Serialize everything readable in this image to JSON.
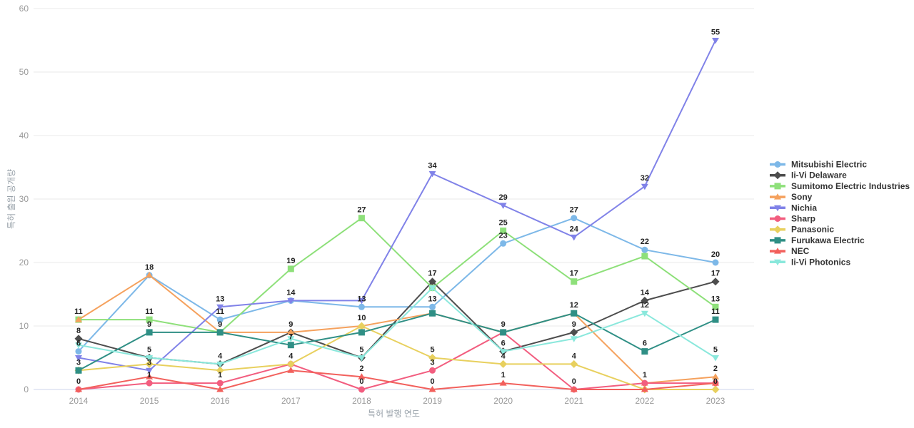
{
  "chart_data": {
    "type": "line",
    "title": "",
    "xlabel": "특허 발행 연도",
    "ylabel": "특허 출원 공개량",
    "categories": [
      "2014",
      "2015",
      "2016",
      "2017",
      "2018",
      "2019",
      "2020",
      "2021",
      "2022",
      "2023"
    ],
    "y_ticks": [
      0,
      10,
      20,
      30,
      40,
      50,
      60
    ],
    "ylim": [
      0,
      60
    ],
    "grid": true,
    "legend_position": "right",
    "series": [
      {
        "name": "Mitsubishi Electric",
        "color": "#7db8e8",
        "symbol": "circle",
        "values": [
          6,
          18,
          11,
          14,
          13,
          13,
          23,
          27,
          22,
          20
        ]
      },
      {
        "name": "Ii-Vi Delaware",
        "color": "#4d4d4d",
        "symbol": "diamond",
        "values": [
          8,
          5,
          4,
          9,
          5,
          17,
          6,
          9,
          14,
          17
        ]
      },
      {
        "name": "Sumitomo Electric Industries",
        "color": "#8ee07a",
        "symbol": "square",
        "values": [
          11,
          11,
          9,
          19,
          27,
          16,
          25,
          17,
          21,
          13
        ]
      },
      {
        "name": "Sony",
        "color": "#f5a15d",
        "symbol": "triangle-up",
        "values": [
          11,
          18,
          9,
          9,
          10,
          12,
          9,
          12,
          1,
          2
        ]
      },
      {
        "name": "Nichia",
        "color": "#8082e8",
        "symbol": "triangle-down",
        "values": [
          5,
          3,
          13,
          14,
          14,
          34,
          29,
          24,
          32,
          55
        ]
      },
      {
        "name": "Sharp",
        "color": "#f25d7f",
        "symbol": "circle",
        "values": [
          0,
          1,
          1,
          4,
          0,
          3,
          9,
          0,
          1,
          1
        ]
      },
      {
        "name": "Panasonic",
        "color": "#e8d05e",
        "symbol": "diamond",
        "values": [
          3,
          4,
          3,
          4,
          10,
          5,
          4,
          4,
          0,
          0
        ]
      },
      {
        "name": "Furukawa Electric",
        "color": "#2f8f85",
        "symbol": "square",
        "values": [
          3,
          9,
          9,
          7,
          9,
          12,
          9,
          12,
          6,
          11
        ]
      },
      {
        "name": "NEC",
        "color": "#f2605c",
        "symbol": "triangle-up",
        "values": [
          0,
          2,
          0,
          3,
          2,
          0,
          1,
          0,
          0,
          1
        ]
      },
      {
        "name": "Ii-Vi Photonics",
        "color": "#8ae8dc",
        "symbol": "triangle-down",
        "values": [
          7,
          5,
          4,
          8,
          5,
          16,
          6,
          8,
          12,
          5
        ]
      }
    ],
    "colors": {
      "grid_line": "#e8e8e8",
      "axis_line": "#ccd6eb",
      "tick_text": "#999999",
      "point_label_text": "#222222",
      "legend_text": "#333333",
      "background": "#ffffff"
    }
  }
}
